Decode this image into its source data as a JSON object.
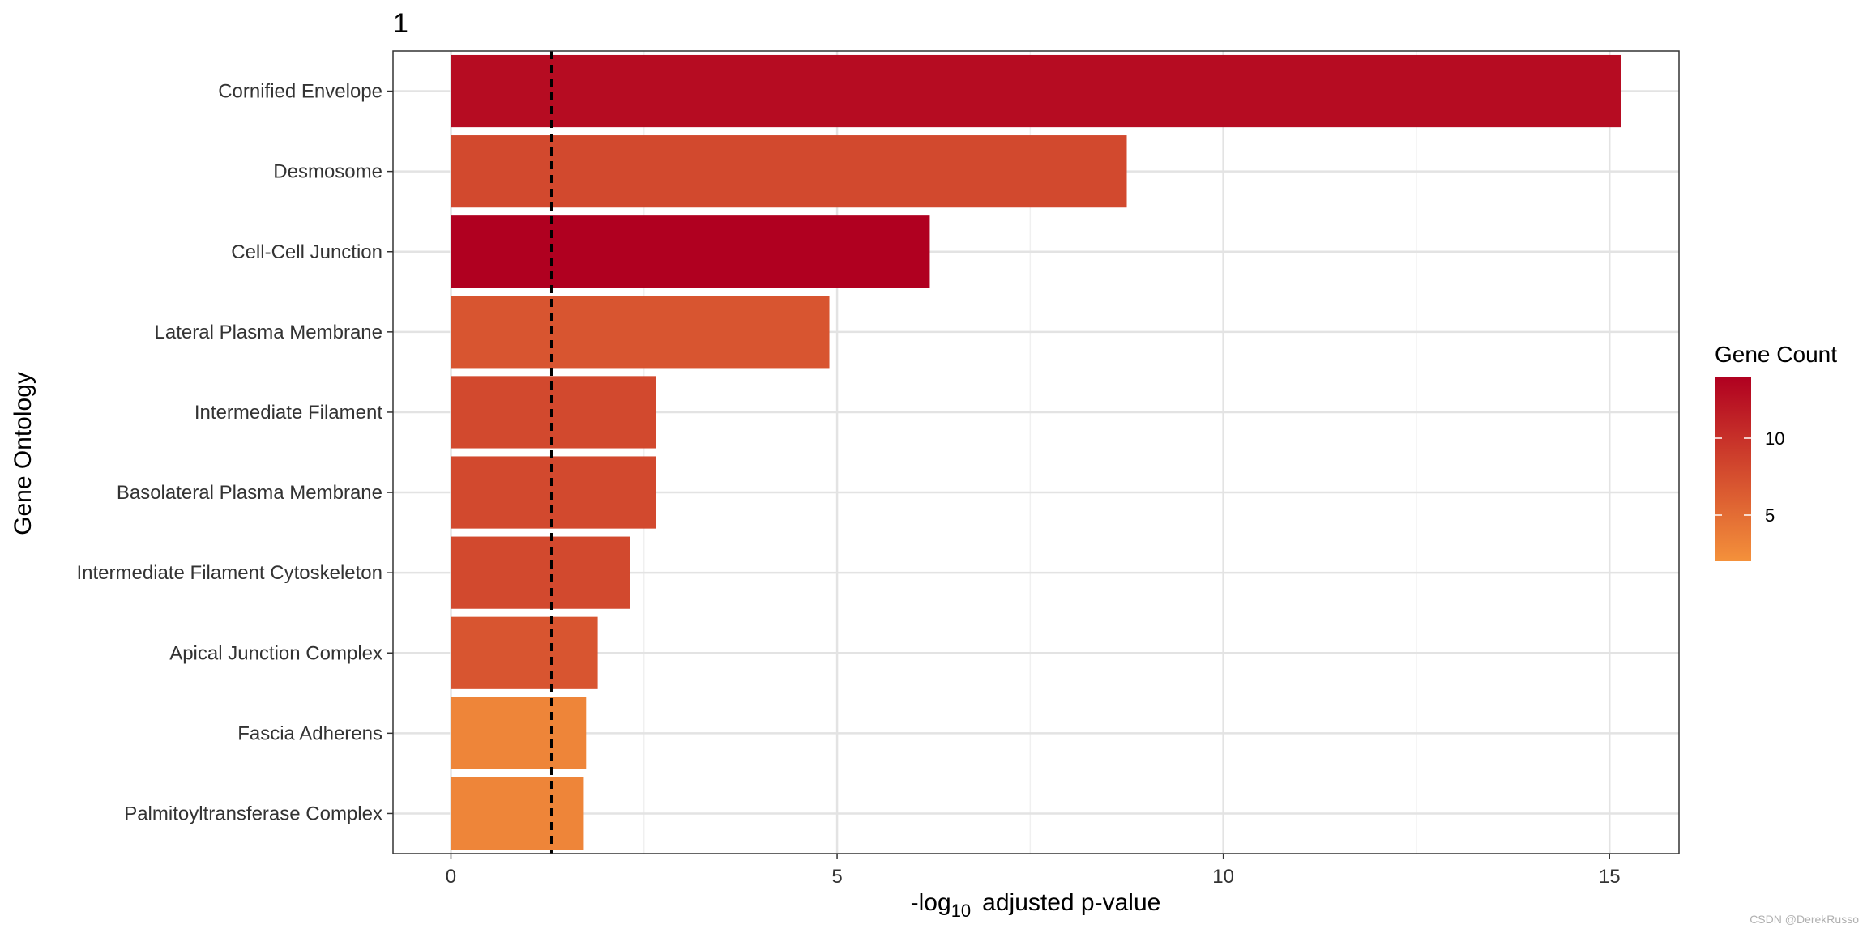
{
  "chart_data": {
    "type": "bar",
    "orientation": "horizontal",
    "panel_tag": "1",
    "categories": [
      "Cornified Envelope",
      "Desmosome",
      "Cell-Cell Junction",
      "Lateral Plasma Membrane",
      "Intermediate Filament",
      "Basolateral Plasma Membrane",
      "Intermediate Filament Cytoskeleton",
      "Apical Junction Complex",
      "Fascia Adherens",
      "Palmitoyltransferase Complex"
    ],
    "values": [
      15.15,
      8.75,
      6.2,
      4.9,
      2.65,
      2.65,
      2.32,
      1.9,
      1.75,
      1.72
    ],
    "gene_count": [
      13,
      8,
      14,
      7,
      8,
      8,
      8,
      7,
      3,
      3
    ],
    "xlabel_prefix": "-log",
    "xlabel_subscript": "10",
    "xlabel_suffix": "adjusted p-value",
    "ylabel": "Gene Ontology",
    "xlim": [
      -0.75,
      15.9
    ],
    "xticks": [
      "0",
      "5",
      "10",
      "15"
    ],
    "threshold": 1.301,
    "grid": true,
    "legend": {
      "title": "Gene Count",
      "position": "right",
      "range": [
        2,
        14
      ],
      "ticks": [
        "5",
        "10"
      ],
      "color_low": "#f4913b",
      "color_high": "#b00020"
    }
  },
  "watermark": "CSDN @DerekRusso"
}
